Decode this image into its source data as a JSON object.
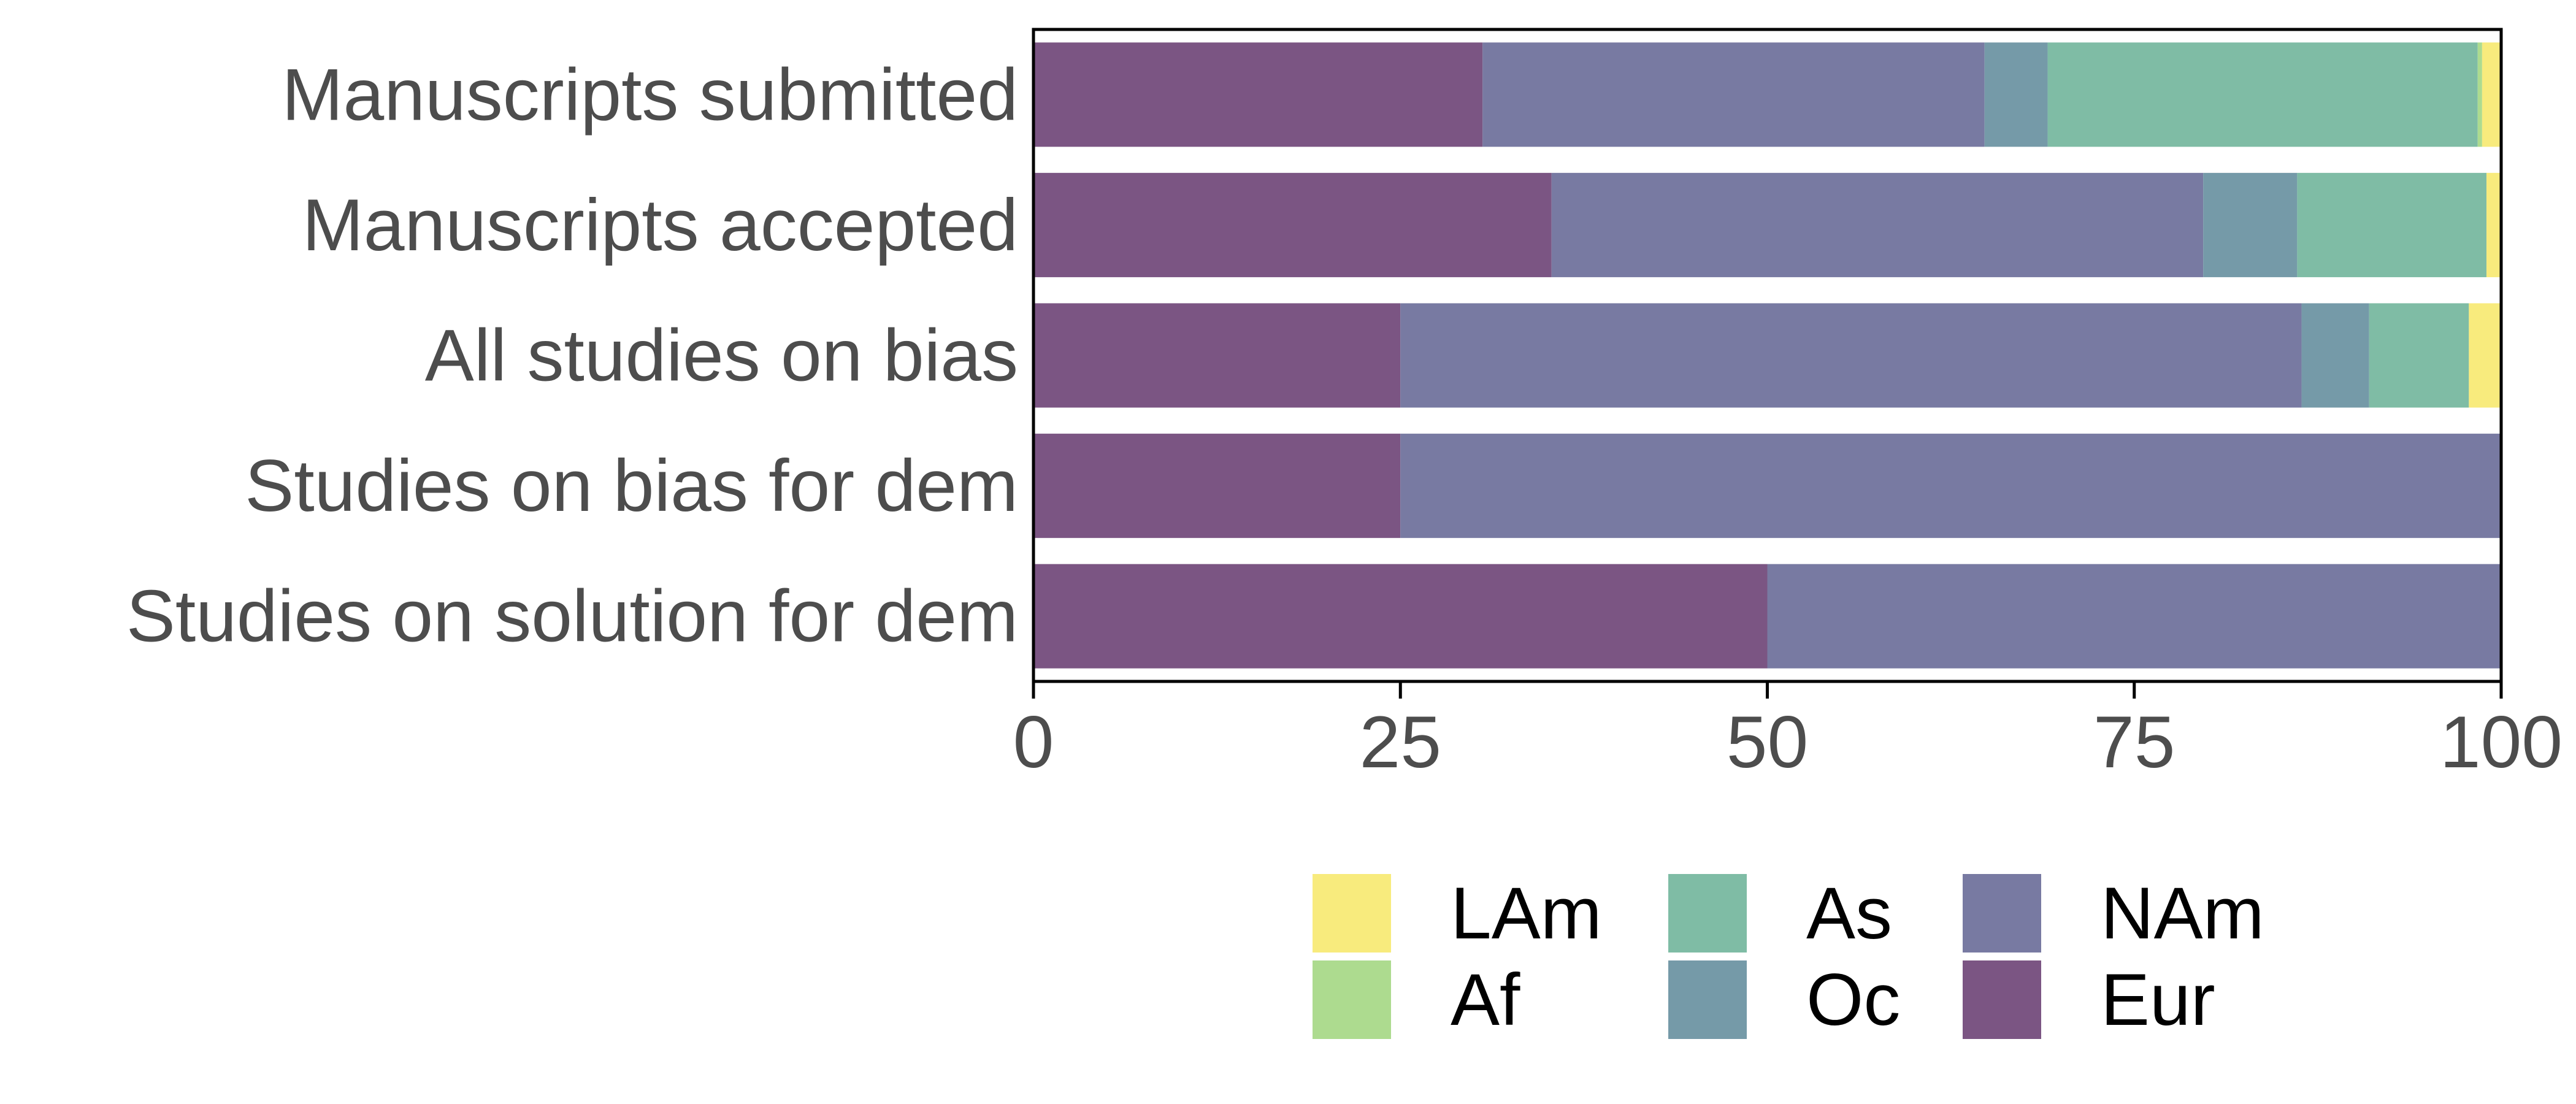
{
  "chart_data": {
    "type": "bar",
    "orientation": "horizontal",
    "stacked": true,
    "title": "",
    "xlabel": "",
    "ylabel": "",
    "xlim": [
      0,
      100
    ],
    "x_ticks": [
      "0",
      "25",
      "50",
      "75",
      "100"
    ],
    "categories": [
      "Manuscripts submitted",
      "Manuscripts accepted",
      "All studies on bias",
      "Studies on bias for dem",
      "Studies on solution for dem"
    ],
    "series": [
      {
        "name": "Eur",
        "color": "#7b5583",
        "values": [
          30.6,
          35.3,
          25.0,
          25.0,
          50.0
        ]
      },
      {
        "name": "NAm",
        "color": "#787aa2",
        "values": [
          34.2,
          44.4,
          61.4,
          75.0,
          50.0
        ]
      },
      {
        "name": "Oc",
        "color": "#759aa8",
        "values": [
          4.3,
          6.4,
          4.6,
          0,
          0
        ]
      },
      {
        "name": "As",
        "color": "#7fbca5",
        "values": [
          29.3,
          12.9,
          6.8,
          0,
          0
        ]
      },
      {
        "name": "Af",
        "color": "#addb8f",
        "values": [
          0.3,
          0,
          0,
          0,
          0
        ]
      },
      {
        "name": "LAm",
        "color": "#f8eb7d",
        "values": [
          1.3,
          1.0,
          2.2,
          0,
          0
        ]
      }
    ],
    "legend": {
      "position": "bottom",
      "entries": [
        "LAm",
        "Af",
        "As",
        "Oc",
        "NAm",
        "Eur"
      ]
    },
    "grid": false
  }
}
